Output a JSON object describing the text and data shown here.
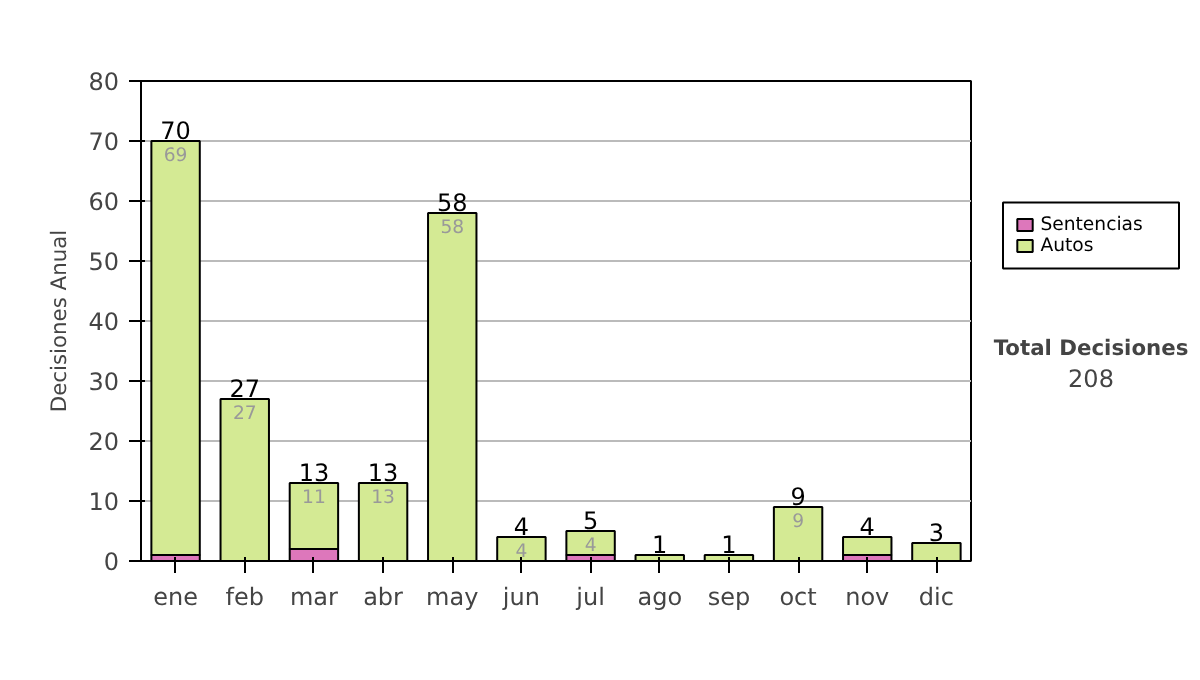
{
  "chart_data": {
    "type": "bar",
    "stacked": true,
    "ylabel": "Decisiones Anual",
    "categories": [
      "ene",
      "feb",
      "mar",
      "abr",
      "may",
      "jun",
      "jul",
      "ago",
      "sep",
      "oct",
      "nov",
      "dic"
    ],
    "series": [
      {
        "name": "Sentencias",
        "color": "#dd77bb",
        "values": [
          1,
          0,
          2,
          0,
          0,
          0,
          1,
          0,
          0,
          0,
          1,
          0
        ]
      },
      {
        "name": "Autos",
        "color": "#d4ea94",
        "values": [
          69,
          27,
          11,
          13,
          58,
          4,
          4,
          1,
          1,
          9,
          3,
          3
        ],
        "value_labels": [
          "69",
          "27",
          "11",
          "13",
          "58",
          "4",
          "4",
          null,
          null,
          "9",
          null,
          null
        ]
      }
    ],
    "totals": [
      "70",
      "27",
      "13",
      "13",
      "58",
      "4",
      "5",
      "1",
      "1",
      "9",
      "4",
      "3"
    ],
    "ylim": [
      0,
      80
    ],
    "yticks": [
      0,
      10,
      20,
      30,
      40,
      50,
      60,
      70,
      80
    ],
    "grid": "y",
    "legend": "right",
    "annotations": [
      "Total Decisiones",
      "208"
    ]
  }
}
